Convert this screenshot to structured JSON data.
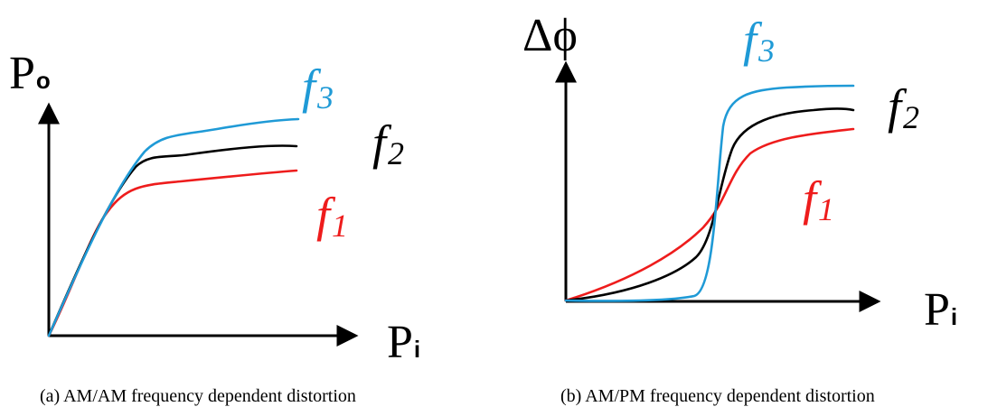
{
  "colors": {
    "f1": "#ee1c1c",
    "f2": "#000000",
    "f3": "#1f9ad6",
    "axis": "#000000"
  },
  "panel_a": {
    "y_axis_label": "P",
    "y_axis_sub": "o",
    "x_axis_label": "P",
    "x_axis_sub": "i",
    "curves": [
      {
        "name": "f",
        "sub": "3"
      },
      {
        "name": "f",
        "sub": "2"
      },
      {
        "name": "f",
        "sub": "1"
      }
    ],
    "caption": "(a)  AM/AM frequency dependent distortion"
  },
  "panel_b": {
    "y_axis_label": "Δϕ",
    "x_axis_label": "P",
    "x_axis_sub": "i",
    "curves": [
      {
        "name": "f",
        "sub": "3"
      },
      {
        "name": "f",
        "sub": "2"
      },
      {
        "name": "f",
        "sub": "1"
      }
    ],
    "caption": "(b)  AM/PM frequency dependent distortion"
  }
}
